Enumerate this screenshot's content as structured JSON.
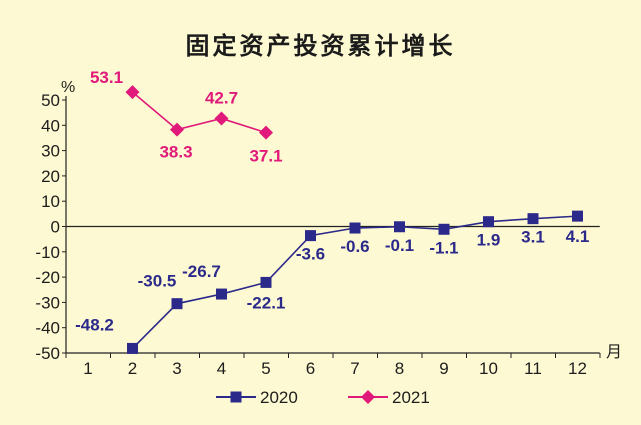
{
  "chart_data": {
    "type": "line",
    "title": "固定资产投资累计增长",
    "ylabel": "%",
    "xlabel": "月",
    "ylim": [
      -50,
      50
    ],
    "yticks": [
      -50,
      -40,
      -30,
      -20,
      -10,
      0,
      10,
      20,
      30,
      40,
      50
    ],
    "x": [
      1,
      2,
      3,
      4,
      5,
      6,
      7,
      8,
      9,
      10,
      11,
      12
    ],
    "series": [
      {
        "name": "2020",
        "color": "#2b2a8a",
        "marker": "square",
        "x": [
          2,
          3,
          4,
          5,
          6,
          7,
          8,
          9,
          10,
          11,
          12
        ],
        "values": [
          -48.2,
          -30.5,
          -26.7,
          -22.1,
          -3.6,
          -0.6,
          -0.1,
          -1.1,
          1.9,
          3.1,
          4.1
        ],
        "labels": [
          "-48.2",
          "-30.5",
          "-26.7",
          "-22.1",
          "-3.6",
          "-0.6",
          "-0.1",
          "-1.1",
          "1.9",
          "3.1",
          "4.1"
        ]
      },
      {
        "name": "2021",
        "color": "#e0197a",
        "marker": "diamond",
        "x": [
          2,
          3,
          4,
          5
        ],
        "values": [
          53.1,
          38.3,
          42.7,
          37.1
        ],
        "labels": [
          "53.1",
          "38.3",
          "42.7",
          "37.1"
        ]
      }
    ],
    "grid": false,
    "legend_position": "bottom"
  }
}
